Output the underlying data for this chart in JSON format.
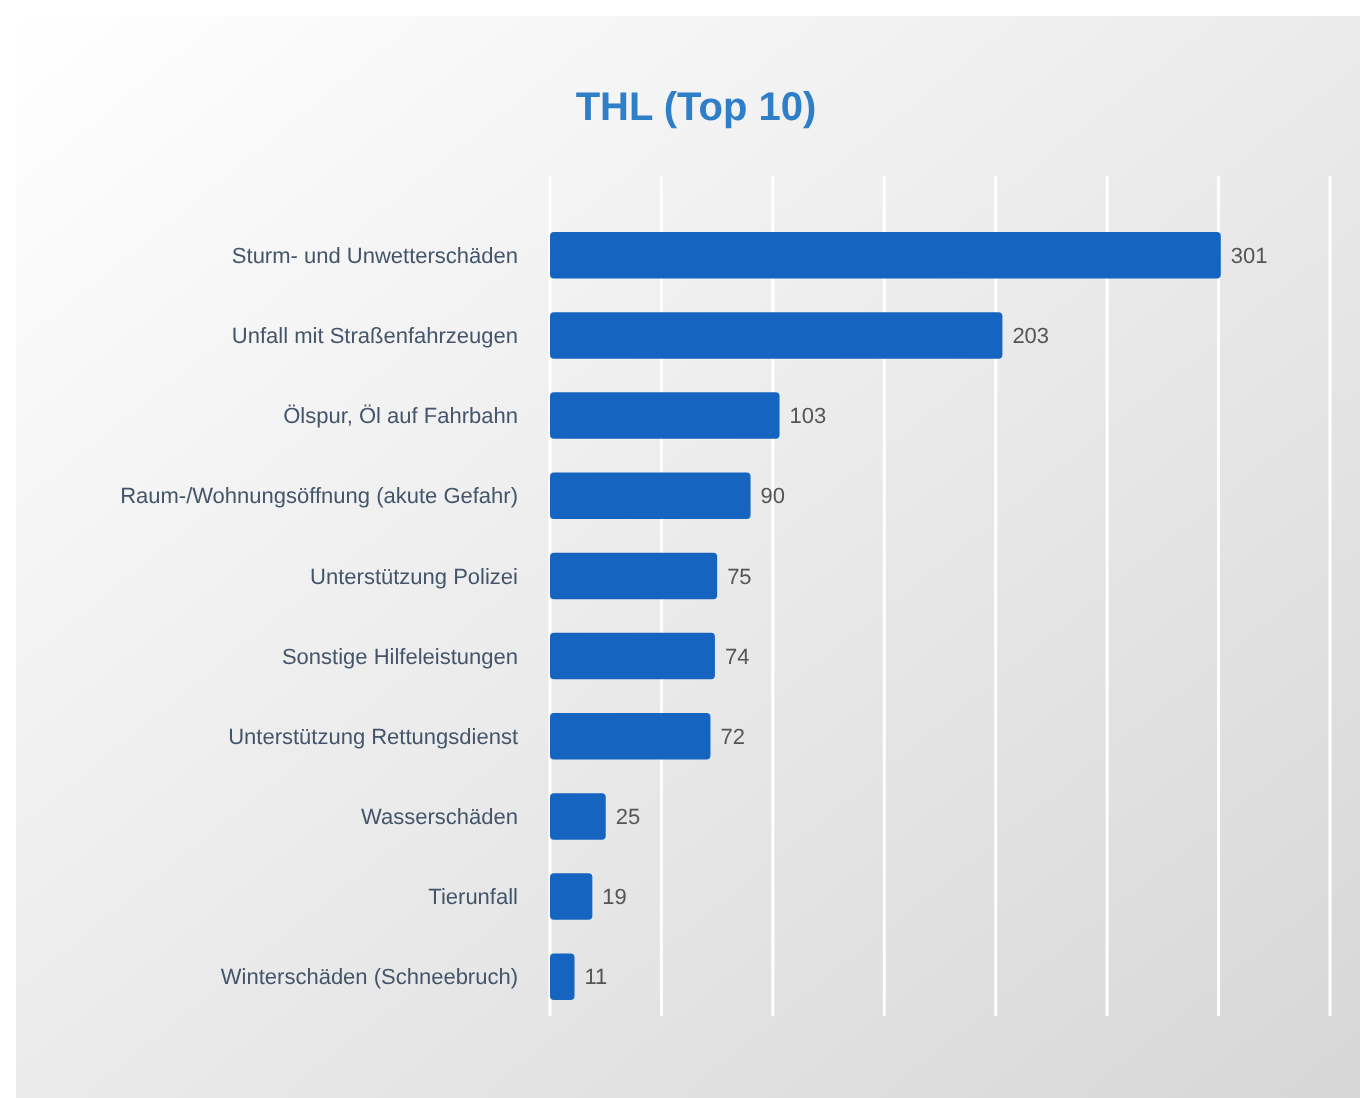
{
  "chart_data": {
    "type": "bar",
    "title": "THL (Top 10)",
    "orientation": "horizontal",
    "categories": [
      "Sturm- und Unwetterschäden",
      "Unfall mit Straßenfahrzeugen",
      "Ölspur, Öl auf Fahrbahn",
      "Raum-/Wohnungsöffnung (akute Gefahr)",
      "Unterstützung Polizei",
      "Sonstige Hilfeleistungen",
      "Unterstützung Rettungsdienst",
      "Wasserschäden",
      "Tierunfall",
      "Winterschäden (Schneebruch)"
    ],
    "values": [
      301,
      203,
      103,
      90,
      75,
      74,
      72,
      25,
      19,
      11
    ],
    "color": "#1565c0",
    "data_labels": true,
    "grid": "x",
    "tick_labels": "y",
    "xlim": [
      0,
      350
    ],
    "xticks": [
      {
        "value": 0,
        "label": null
      },
      {
        "value": 50,
        "label": null
      },
      {
        "value": 100,
        "label": null
      },
      {
        "value": 150,
        "label": null
      },
      {
        "value": 200,
        "label": null
      },
      {
        "value": 250,
        "label": null
      },
      {
        "value": 300,
        "label": null
      },
      {
        "value": 350,
        "label": null
      }
    ]
  }
}
